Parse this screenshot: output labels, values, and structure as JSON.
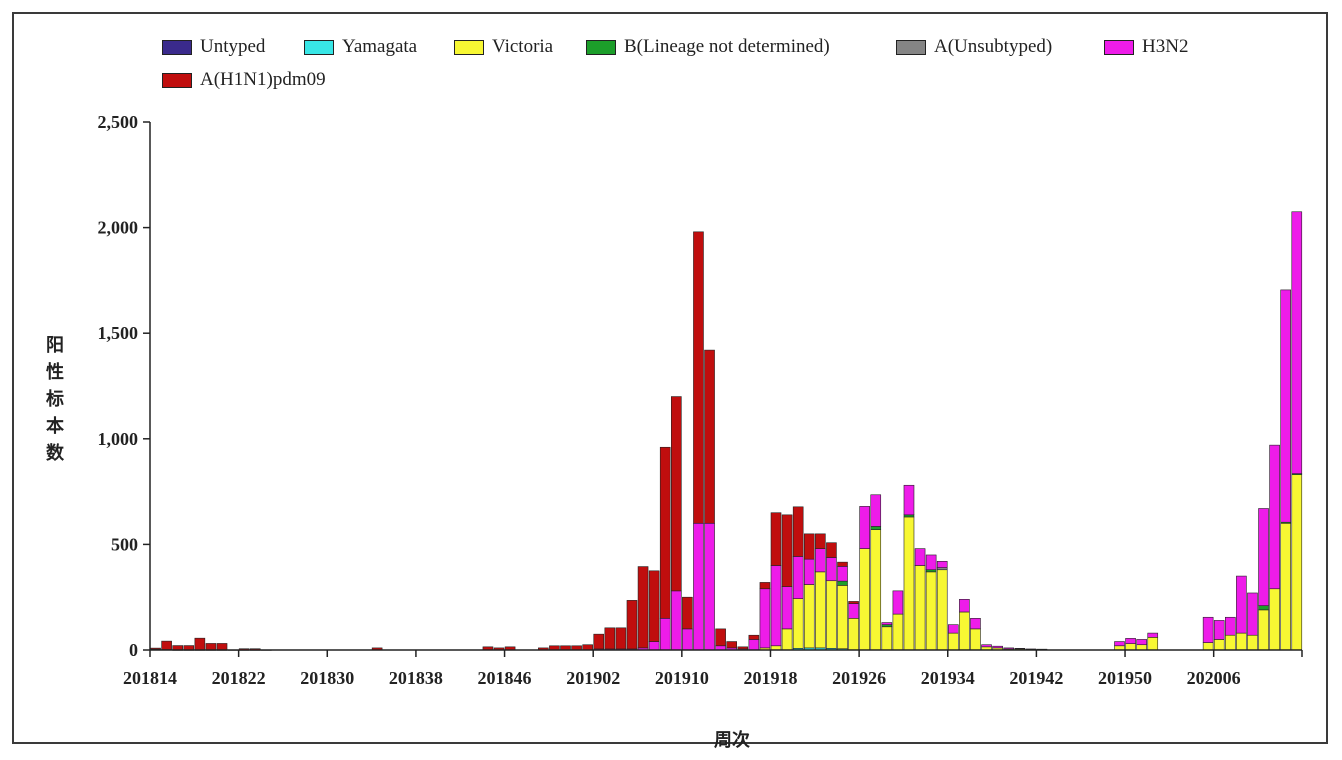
{
  "chart_data": {
    "type": "bar",
    "stacked": true,
    "ylabel": "阳性标本数",
    "xlabel": "周次",
    "ylim": [
      0,
      2500
    ],
    "yticks": [
      0,
      500,
      1000,
      1500,
      2000,
      2500
    ],
    "ytick_labels": [
      "0",
      "500",
      "1,000",
      "1,500",
      "2,000",
      "2,500"
    ],
    "xtick_labels": [
      "201814",
      "201822",
      "201830",
      "201838",
      "201846",
      "201902",
      "201910",
      "201918",
      "201926",
      "201934",
      "201942",
      "201950",
      "202006"
    ],
    "xtick_every": 8,
    "num_weeks": 104,
    "legend_position": "top",
    "series": [
      {
        "name": "Untyped",
        "color": "#3a2a8c",
        "values": [
          4,
          2,
          1,
          1,
          1,
          1,
          1,
          1,
          1,
          1,
          1,
          0,
          0,
          0,
          0,
          0,
          0,
          0,
          0,
          0,
          0,
          0,
          0,
          0,
          0,
          0,
          0,
          0,
          0,
          0,
          0,
          0,
          0,
          0,
          0,
          0,
          0,
          0,
          0,
          0,
          0,
          0,
          0,
          0,
          0,
          0,
          0,
          0,
          0,
          0,
          0,
          0,
          0,
          0,
          0,
          0,
          0,
          0,
          0,
          0,
          0,
          0,
          0,
          0,
          0,
          0,
          0,
          0,
          0,
          0,
          0,
          0,
          0,
          0,
          0,
          0,
          0,
          0,
          0,
          0,
          0,
          0,
          0,
          0,
          0,
          0,
          0,
          0,
          0,
          0,
          0,
          0,
          0,
          0,
          0,
          0,
          0,
          0,
          0,
          0,
          0,
          0,
          0,
          0
        ]
      },
      {
        "name": "Yamagata",
        "color": "#38e6e6",
        "values": [
          0,
          0,
          0,
          0,
          0,
          0,
          0,
          0,
          0,
          0,
          0,
          0,
          0,
          0,
          0,
          0,
          0,
          0,
          0,
          0,
          0,
          0,
          0,
          0,
          0,
          0,
          0,
          0,
          0,
          0,
          0,
          0,
          0,
          0,
          0,
          0,
          0,
          0,
          0,
          0,
          0,
          0,
          0,
          0,
          0,
          0,
          0,
          0,
          0,
          0,
          0,
          0,
          0,
          0,
          0,
          0,
          0,
          0,
          8,
          10,
          10,
          8,
          6,
          0,
          0,
          0,
          0,
          0,
          0,
          0,
          0,
          0,
          0,
          0,
          0,
          0,
          0,
          0,
          0,
          0,
          0,
          0,
          0,
          0,
          0,
          0,
          0,
          0,
          0,
          0,
          0,
          0,
          0,
          0,
          0,
          0,
          0,
          0,
          0,
          0,
          0,
          0,
          0,
          0
        ]
      },
      {
        "name": "Victoria",
        "color": "#f7f733",
        "values": [
          0,
          0,
          0,
          0,
          0,
          0,
          0,
          0,
          0,
          0,
          0,
          0,
          0,
          0,
          0,
          0,
          0,
          0,
          0,
          0,
          0,
          0,
          0,
          0,
          0,
          0,
          0,
          0,
          0,
          0,
          0,
          0,
          0,
          0,
          0,
          0,
          0,
          0,
          0,
          0,
          0,
          0,
          0,
          0,
          0,
          0,
          0,
          0,
          0,
          0,
          0,
          0,
          0,
          0,
          0,
          10,
          20,
          100,
          235,
          300,
          360,
          320,
          300,
          150,
          480,
          570,
          110,
          170,
          630,
          400,
          370,
          380,
          80,
          180,
          100,
          15,
          10,
          5,
          5,
          3,
          2,
          0,
          0,
          0,
          0,
          0,
          0,
          20,
          30,
          25,
          60,
          0,
          0,
          0,
          0,
          35,
          50,
          70,
          80,
          70,
          190,
          290,
          600,
          830
        ]
      },
      {
        "name": "B(Lineage not determined)",
        "color": "#1c9e2a",
        "values": [
          0,
          0,
          0,
          0,
          0,
          0,
          0,
          0,
          0,
          0,
          0,
          0,
          0,
          0,
          0,
          0,
          0,
          0,
          0,
          0,
          0,
          0,
          0,
          0,
          0,
          0,
          0,
          0,
          0,
          0,
          0,
          0,
          0,
          0,
          0,
          0,
          0,
          0,
          0,
          0,
          0,
          0,
          0,
          0,
          0,
          0,
          0,
          0,
          0,
          0,
          0,
          0,
          0,
          0,
          0,
          0,
          0,
          0,
          0,
          0,
          0,
          0,
          20,
          0,
          0,
          15,
          10,
          0,
          10,
          0,
          10,
          0,
          0,
          0,
          0,
          0,
          0,
          0,
          0,
          0,
          0,
          0,
          0,
          0,
          0,
          0,
          0,
          0,
          0,
          0,
          0,
          0,
          0,
          0,
          0,
          0,
          0,
          0,
          0,
          0,
          20,
          0,
          5,
          5
        ]
      },
      {
        "name": "A(Unsubtyped)",
        "color": "#858585",
        "values": [
          0,
          0,
          0,
          0,
          0,
          0,
          0,
          0,
          0,
          0,
          0,
          0,
          0,
          0,
          0,
          0,
          0,
          0,
          0,
          0,
          0,
          0,
          0,
          0,
          0,
          0,
          0,
          0,
          0,
          0,
          0,
          0,
          0,
          0,
          0,
          0,
          0,
          0,
          0,
          0,
          0,
          0,
          0,
          0,
          0,
          0,
          0,
          0,
          0,
          0,
          0,
          0,
          0,
          0,
          0,
          0,
          0,
          0,
          0,
          0,
          0,
          0,
          0,
          0,
          0,
          0,
          0,
          0,
          0,
          0,
          0,
          10,
          0,
          0,
          0,
          0,
          0,
          0,
          0,
          0,
          0,
          0,
          0,
          0,
          0,
          0,
          0,
          0,
          0,
          0,
          0,
          0,
          0,
          0,
          0,
          0,
          0,
          0,
          0,
          0,
          0,
          0,
          0,
          0
        ]
      },
      {
        "name": "H3N2",
        "color": "#ee1ce9",
        "values": [
          0,
          0,
          0,
          0,
          0,
          0,
          0,
          0,
          0,
          0,
          0,
          0,
          0,
          0,
          0,
          0,
          0,
          0,
          0,
          0,
          0,
          0,
          0,
          0,
          0,
          0,
          0,
          0,
          0,
          0,
          0,
          0,
          0,
          0,
          0,
          0,
          0,
          0,
          0,
          0,
          5,
          5,
          5,
          5,
          10,
          40,
          150,
          280,
          100,
          600,
          600,
          20,
          10,
          5,
          50,
          280,
          380,
          200,
          200,
          120,
          110,
          110,
          70,
          70,
          200,
          150,
          10,
          110,
          140,
          80,
          70,
          30,
          40,
          60,
          50,
          10,
          8,
          5,
          3,
          2,
          2,
          0,
          0,
          0,
          0,
          0,
          0,
          20,
          25,
          25,
          20,
          0,
          0,
          0,
          0,
          120,
          90,
          85,
          270,
          200,
          460,
          680,
          1100,
          1240
        ]
      },
      {
        "name": "A(H1N1)pdm09",
        "color": "#c00e0e",
        "values": [
          5,
          40,
          20,
          20,
          55,
          30,
          30,
          0,
          5,
          5,
          0,
          0,
          0,
          0,
          0,
          0,
          0,
          0,
          0,
          0,
          10,
          0,
          0,
          0,
          0,
          0,
          0,
          0,
          0,
          0,
          15,
          10,
          15,
          0,
          0,
          10,
          20,
          20,
          20,
          25,
          70,
          100,
          100,
          230,
          385,
          335,
          810,
          920,
          150,
          1380,
          820,
          80,
          30,
          10,
          20,
          30,
          250,
          340,
          235,
          120,
          70,
          70,
          20,
          10,
          0,
          0,
          0,
          0,
          0,
          0,
          0,
          0,
          0,
          0,
          0,
          0,
          0,
          0,
          0,
          0,
          0,
          0,
          0,
          0,
          0,
          0,
          0,
          0,
          0,
          0,
          0,
          0,
          0,
          0,
          0,
          0,
          0,
          0,
          0,
          0,
          0,
          0,
          0,
          0
        ]
      }
    ]
  }
}
